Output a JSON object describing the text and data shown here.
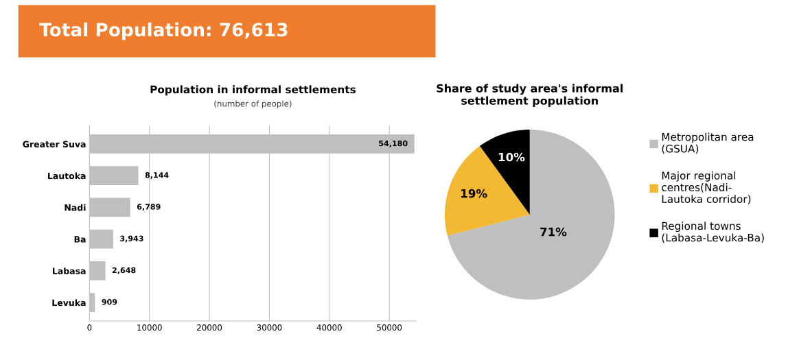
{
  "chart_data": [
    {
      "type": "other",
      "title": "Total Population: 76,613",
      "color": "#ef7d2d"
    },
    {
      "type": "bar",
      "orientation": "horizontal",
      "title": "Population in informal settlements",
      "subtitle": "(number of people)",
      "categories": [
        "Greater Suva",
        "Lautoka",
        "Nadi",
        "Ba",
        "Labasa",
        "Levuka"
      ],
      "values": [
        54180,
        8144,
        6789,
        3943,
        2648,
        909
      ],
      "value_labels": [
        "54,180",
        "8,144",
        "6,789",
        "3,943",
        "2,648",
        "909"
      ],
      "color": "#bfbfbf",
      "xlim": [
        0,
        54500
      ],
      "xticks": [
        0,
        10000,
        20000,
        30000,
        40000,
        50000
      ],
      "grid": "x"
    },
    {
      "type": "pie",
      "title": "Share of study area's informal\nsettlement population",
      "categories": [
        "Metropolitan area\n(GSUA)",
        "Major regional\ncentres(Nadi-\nLautoka corridor)",
        "Regional towns\n(Labasa-Levuka-Ba)"
      ],
      "values": [
        71,
        19,
        10
      ],
      "value_labels": [
        "71%",
        "19%",
        "10%"
      ],
      "colors": [
        "#bfbfbf",
        "#f4b933",
        "#000000"
      ],
      "legend": "right"
    }
  ]
}
